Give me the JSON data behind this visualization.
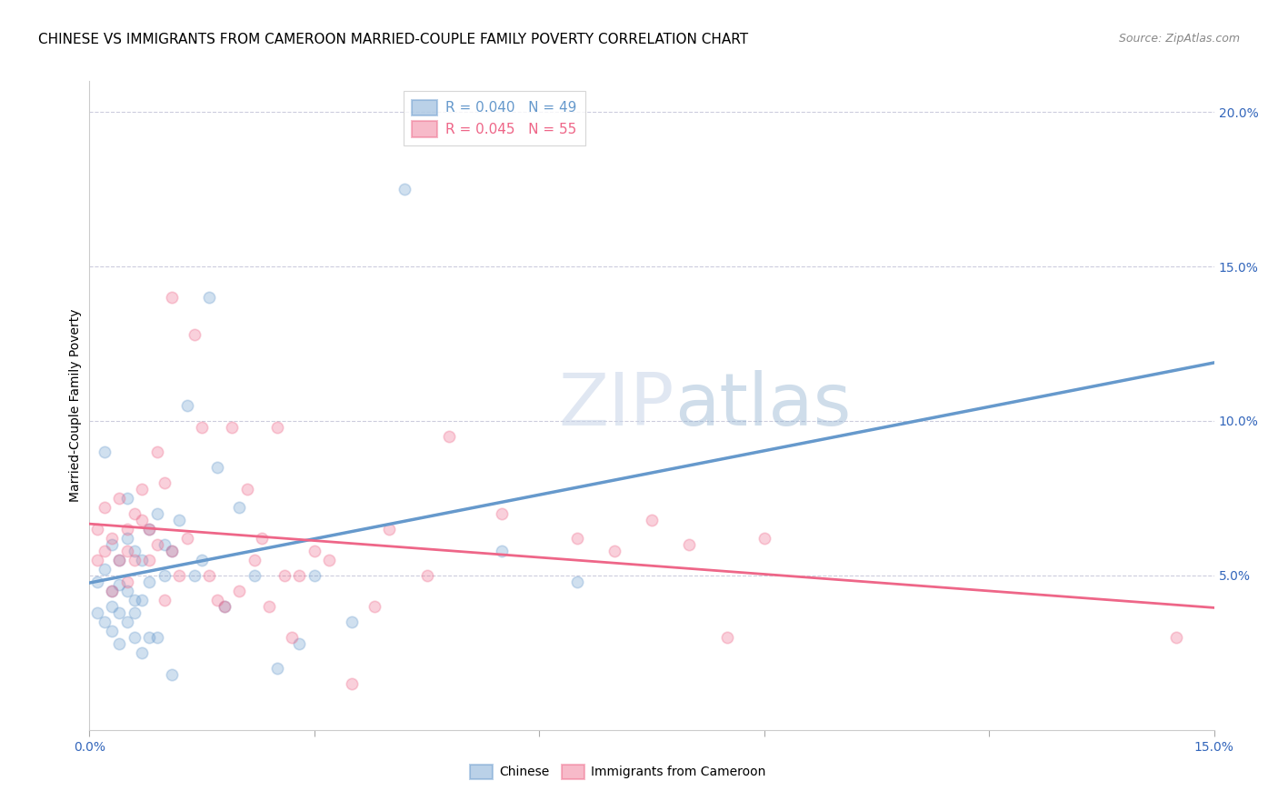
{
  "title": "CHINESE VS IMMIGRANTS FROM CAMEROON MARRIED-COUPLE FAMILY POVERTY CORRELATION CHART",
  "source": "Source: ZipAtlas.com",
  "ylabel": "Married-Couple Family Poverty",
  "xlim": [
    0.0,
    0.15
  ],
  "ylim": [
    0.0,
    0.21
  ],
  "xtick_positions": [
    0.0,
    0.03,
    0.06,
    0.09,
    0.12,
    0.15
  ],
  "xtick_labels": [
    "0.0%",
    "",
    "",
    "",
    "",
    "15.0%"
  ],
  "ytick_positions": [
    0.05,
    0.1,
    0.15,
    0.2
  ],
  "ytick_labels": [
    "5.0%",
    "10.0%",
    "15.0%",
    "20.0%"
  ],
  "chinese_color": "#6699cc",
  "cameroon_color": "#ee6688",
  "background_color": "#ffffff",
  "grid_color": "#ccccdd",
  "watermark_text": "ZIPatlas",
  "chinese_label_top": "R = 0.040   N = 49",
  "cameroon_label_top": "R = 0.045   N = 55",
  "chinese_label_bot": "Chinese",
  "cameroon_label_bot": "Immigrants from Cameroon",
  "title_fontsize": 11,
  "source_fontsize": 9,
  "tick_fontsize": 10,
  "legend_fontsize": 11,
  "marker_size": 80,
  "chinese_x": [
    0.001,
    0.001,
    0.002,
    0.002,
    0.002,
    0.003,
    0.003,
    0.003,
    0.003,
    0.004,
    0.004,
    0.004,
    0.004,
    0.005,
    0.005,
    0.005,
    0.005,
    0.006,
    0.006,
    0.006,
    0.006,
    0.007,
    0.007,
    0.007,
    0.008,
    0.008,
    0.008,
    0.009,
    0.009,
    0.01,
    0.01,
    0.011,
    0.011,
    0.012,
    0.013,
    0.014,
    0.015,
    0.016,
    0.017,
    0.018,
    0.02,
    0.022,
    0.025,
    0.028,
    0.03,
    0.035,
    0.042,
    0.055,
    0.065
  ],
  "chinese_y": [
    0.048,
    0.038,
    0.052,
    0.09,
    0.035,
    0.06,
    0.045,
    0.04,
    0.032,
    0.055,
    0.047,
    0.038,
    0.028,
    0.075,
    0.062,
    0.045,
    0.035,
    0.058,
    0.042,
    0.038,
    0.03,
    0.055,
    0.042,
    0.025,
    0.065,
    0.048,
    0.03,
    0.07,
    0.03,
    0.06,
    0.05,
    0.058,
    0.018,
    0.068,
    0.105,
    0.05,
    0.055,
    0.14,
    0.085,
    0.04,
    0.072,
    0.05,
    0.02,
    0.028,
    0.05,
    0.035,
    0.175,
    0.058,
    0.048
  ],
  "cameroon_x": [
    0.001,
    0.001,
    0.002,
    0.002,
    0.003,
    0.003,
    0.004,
    0.004,
    0.005,
    0.005,
    0.005,
    0.006,
    0.006,
    0.007,
    0.007,
    0.008,
    0.008,
    0.009,
    0.009,
    0.01,
    0.01,
    0.011,
    0.011,
    0.012,
    0.013,
    0.014,
    0.015,
    0.016,
    0.017,
    0.018,
    0.019,
    0.02,
    0.021,
    0.022,
    0.023,
    0.024,
    0.025,
    0.026,
    0.027,
    0.028,
    0.03,
    0.032,
    0.035,
    0.038,
    0.04,
    0.045,
    0.048,
    0.055,
    0.065,
    0.07,
    0.075,
    0.08,
    0.085,
    0.09,
    0.145
  ],
  "cameroon_y": [
    0.065,
    0.055,
    0.072,
    0.058,
    0.062,
    0.045,
    0.075,
    0.055,
    0.065,
    0.058,
    0.048,
    0.07,
    0.055,
    0.068,
    0.078,
    0.065,
    0.055,
    0.09,
    0.06,
    0.08,
    0.042,
    0.058,
    0.14,
    0.05,
    0.062,
    0.128,
    0.098,
    0.05,
    0.042,
    0.04,
    0.098,
    0.045,
    0.078,
    0.055,
    0.062,
    0.04,
    0.098,
    0.05,
    0.03,
    0.05,
    0.058,
    0.055,
    0.015,
    0.04,
    0.065,
    0.05,
    0.095,
    0.07,
    0.062,
    0.058,
    0.068,
    0.06,
    0.03,
    0.062,
    0.03
  ]
}
